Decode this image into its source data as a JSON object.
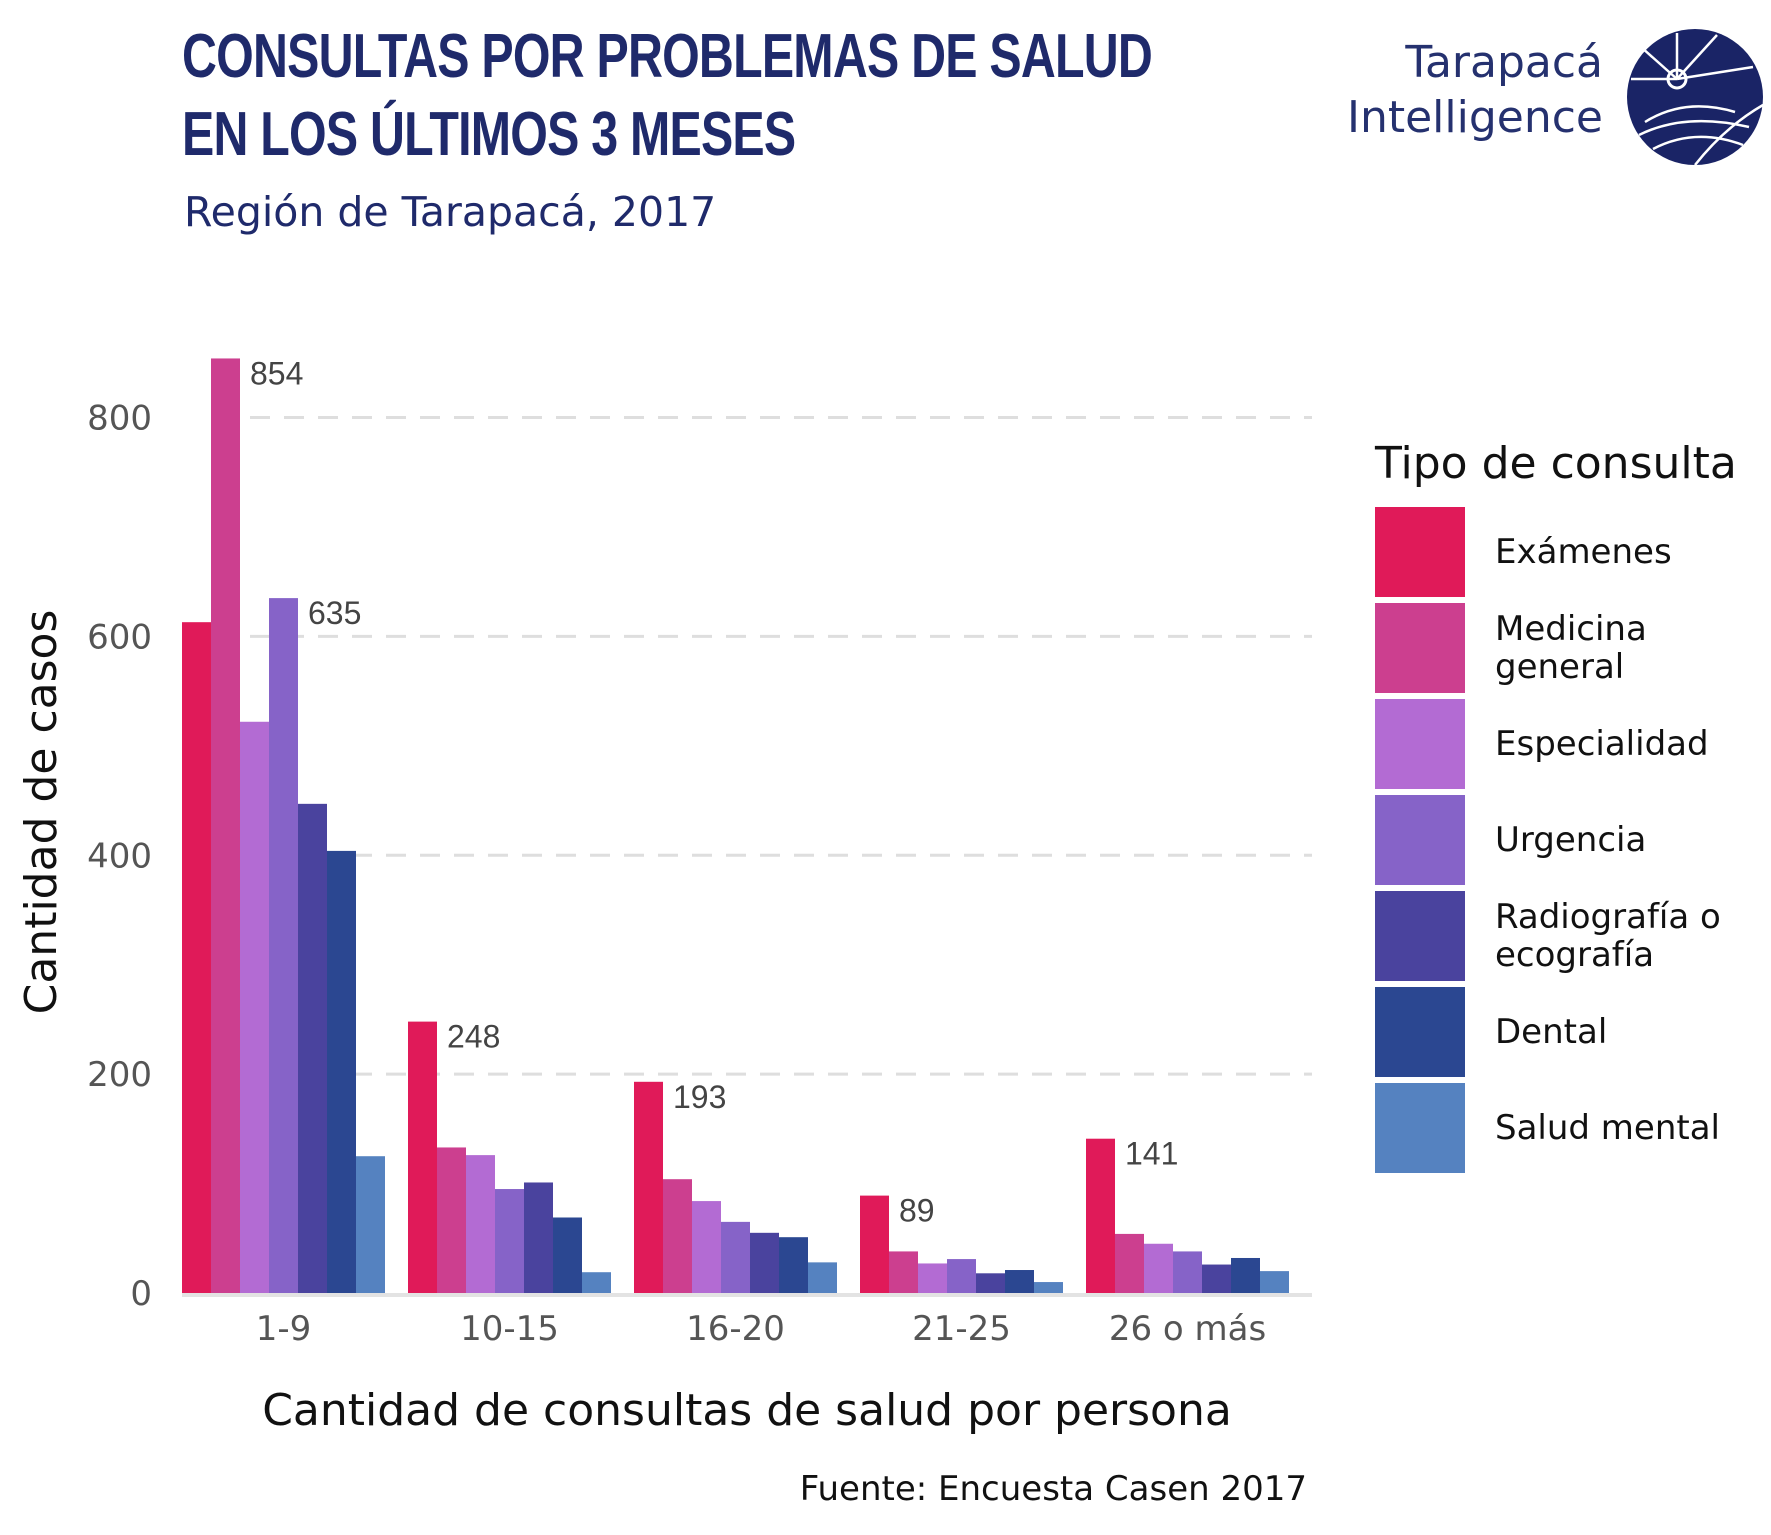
{
  "header": {
    "title_line1": "CONSULTAS POR PROBLEMAS DE SALUD",
    "title_line2": "EN LOS ÚLTIMOS 3 MESES",
    "subtitle": "Región de Tarapacá, 2017"
  },
  "logo": {
    "line1": "Tarapacá",
    "line2": "Intelligence",
    "color": "#1a2466"
  },
  "legend": {
    "title": "Tipo de consulta"
  },
  "source": "Fuente: Encuesta Casen 2017",
  "chart_data": {
    "type": "bar",
    "xlabel": "Cantidad de consultas de salud por persona",
    "ylabel": "Cantidad de casos",
    "ylim": [
      0,
      880
    ],
    "yticks": [
      0,
      200,
      400,
      600,
      800
    ],
    "grid": "horizontal dashed",
    "legend_position": "right",
    "categories": [
      "1-9",
      "10-15",
      "16-20",
      "21-25",
      "26 o más"
    ],
    "series": [
      {
        "name": "Exámenes",
        "color": "#e01a59",
        "values": [
          613,
          248,
          193,
          89,
          141
        ]
      },
      {
        "name": "Medicina general",
        "color": "#cc3f8f",
        "values": [
          854,
          133,
          104,
          38,
          54
        ]
      },
      {
        "name": "Especialidad",
        "color": "#b36bd3",
        "values": [
          522,
          126,
          84,
          27,
          45
        ]
      },
      {
        "name": "Urgencia",
        "color": "#8663c8",
        "values": [
          635,
          95,
          65,
          31,
          38
        ]
      },
      {
        "name": "Radiografía o ecografía",
        "color": "#4a439e",
        "values": [
          447,
          101,
          55,
          18,
          26
        ]
      },
      {
        "name": "Dental",
        "color": "#2b4791",
        "values": [
          404,
          69,
          51,
          21,
          32
        ]
      },
      {
        "name": "Salud mental",
        "color": "#5582c0",
        "values": [
          125,
          19,
          28,
          10,
          20
        ]
      }
    ],
    "data_labels": [
      {
        "category": "1-9",
        "series": "Medicina general",
        "text": "854"
      },
      {
        "category": "1-9",
        "series": "Urgencia",
        "text": "635"
      },
      {
        "category": "10-15",
        "series": "Exámenes",
        "text": "248"
      },
      {
        "category": "16-20",
        "series": "Exámenes",
        "text": "193"
      },
      {
        "category": "21-25",
        "series": "Exámenes",
        "text": "89"
      },
      {
        "category": "26 o más",
        "series": "Exámenes",
        "text": "141"
      }
    ]
  }
}
